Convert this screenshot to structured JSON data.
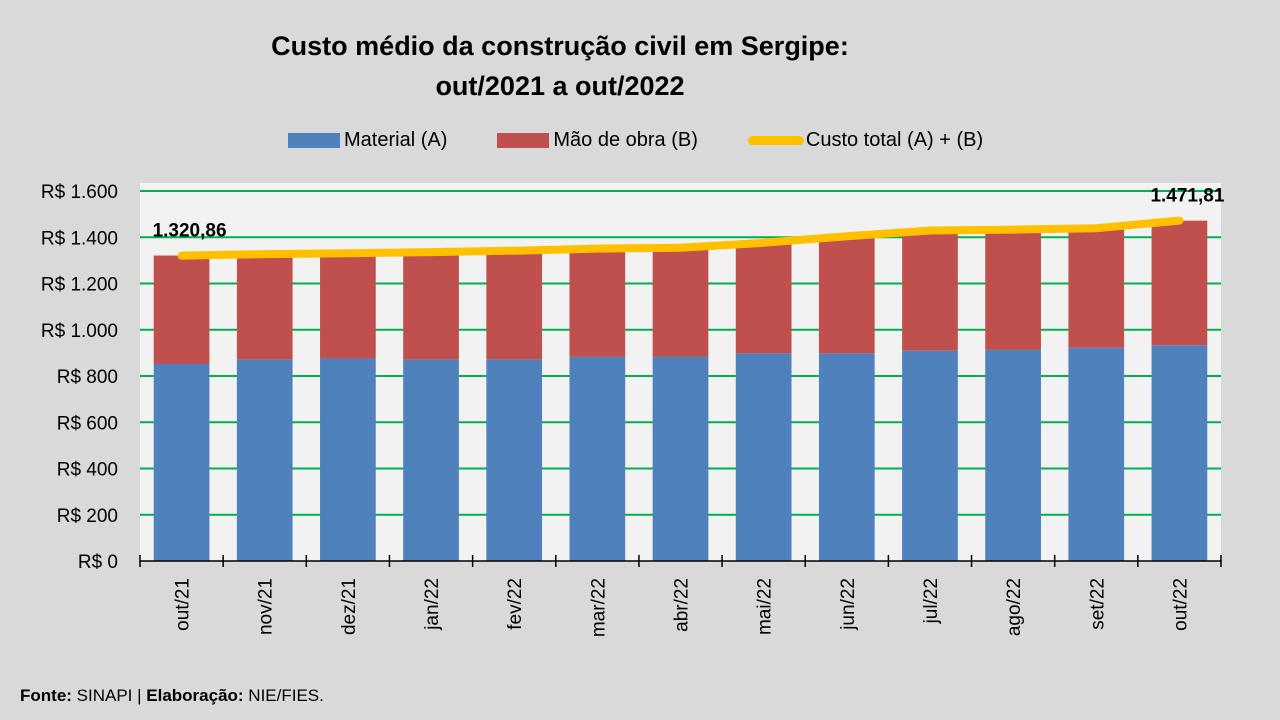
{
  "chart_data": {
    "type": "bar",
    "stacked": true,
    "title": "Custo médio da construção civil em Sergipe:",
    "subtitle": "out/2021 a out/2022",
    "xlabel": "",
    "ylabel": "",
    "categories": [
      "out/21",
      "nov/21",
      "dez/21",
      "jan/22",
      "fev/22",
      "mar/22",
      "abr/22",
      "mai/22",
      "jun/22",
      "jul/22",
      "ago/22",
      "set/22",
      "out/22"
    ],
    "series": [
      {
        "name": "Material (A)",
        "type": "bar",
        "color": "#4F81BD",
        "values": [
          852,
          872,
          876,
          872,
          872,
          883,
          884,
          898,
          898,
          909,
          913,
          922,
          933
        ]
      },
      {
        "name": "Mão de obra (B)",
        "type": "bar",
        "color": "#C0504D",
        "values": [
          468.86,
          455,
          455,
          464,
          470,
          468,
          471,
          478,
          506,
          520,
          520,
          517,
          538.81
        ]
      },
      {
        "name": "Custo total (A) + (B)",
        "type": "line",
        "color": "#FFC000",
        "values": [
          1320.86,
          1327,
          1331,
          1336,
          1342,
          1351,
          1355,
          1376,
          1404,
          1429,
          1433,
          1439,
          1471.81
        ]
      }
    ],
    "data_labels": [
      {
        "category": "out/21",
        "text": "1.320,86"
      },
      {
        "category": "out/22",
        "text": "1.471,81"
      }
    ],
    "ylim": [
      0,
      1600
    ],
    "yticks": [
      0,
      200,
      400,
      600,
      800,
      1000,
      1200,
      1400,
      1600
    ],
    "ytick_labels": [
      "R$ 0",
      "R$ 200",
      "R$ 400",
      "R$ 600",
      "R$ 800",
      "R$ 1.000",
      "R$ 1.200",
      "R$ 1.400",
      "R$ 1.600"
    ],
    "grid": true,
    "grid_color": "#00B050",
    "legend_position": "top"
  },
  "header": {
    "title_line1": "Custo médio da construção civil em Sergipe:",
    "title_line2": "out/2021 a out/2022"
  },
  "legend": {
    "items": [
      {
        "label": "Material (A)",
        "color": "#4F81BD"
      },
      {
        "label": "Mão de obra (B)",
        "color": "#C0504D"
      },
      {
        "label": "Custo total (A) + (B)",
        "color": "#FFC000"
      }
    ]
  },
  "footer": {
    "source_label": "Fonte:",
    "source_value": " SINAPI | ",
    "credit_label": "Elaboração:",
    "credit_value": " NIE/FIES."
  }
}
